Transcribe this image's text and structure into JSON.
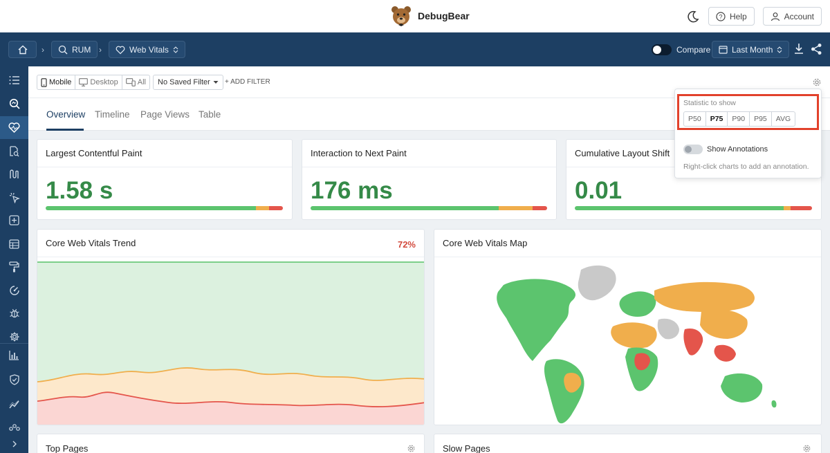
{
  "app": {
    "name": "DebugBear"
  },
  "topbar": {
    "help_label": "Help",
    "account_label": "Account"
  },
  "nav": {
    "breadcrumbs": [
      {
        "label": "RUM"
      },
      {
        "label": "Web Vitals"
      }
    ],
    "compare_label": "Compare",
    "date_range": "Last Month"
  },
  "filters": {
    "devices": [
      "Mobile",
      "Desktop",
      "All"
    ],
    "selected_device": "Mobile",
    "saved_filter": "No Saved Filter",
    "add_filter": "+ ADD FILTER"
  },
  "tabs": [
    "Overview",
    "Timeline",
    "Page Views",
    "Table"
  ],
  "active_tab": "Overview",
  "metrics": [
    {
      "title": "Largest Contentful Paint",
      "value": "1.58 s",
      "dist": [
        0.886,
        0.056,
        0.058
      ]
    },
    {
      "title": "Interaction to Next Paint",
      "value": "176 ms",
      "dist": [
        0.794,
        0.146,
        0.06
      ]
    },
    {
      "title": "Cumulative Layout Shift",
      "value": "0.01",
      "dist": [
        0.88,
        0.03,
        0.09
      ]
    }
  ],
  "trend": {
    "title": "Core Web Vitals Trend",
    "pct": "72%"
  },
  "map": {
    "title": "Core Web Vitals Map"
  },
  "bottom_cards": {
    "top_pages": "Top Pages",
    "slow_pages": "Slow Pages"
  },
  "popover": {
    "stat_label": "Statistic to show",
    "stats": [
      "P50",
      "P75",
      "P90",
      "P95",
      "AVG"
    ],
    "selected_stat": "P75",
    "annotations_label": "Show Annotations",
    "annotations_hint": "Right-click charts to add an annotation."
  },
  "colors": {
    "good": "#5cc46e",
    "needs_improvement": "#f0ae4c",
    "poor": "#e4554b",
    "nav_bg": "#1d3f63",
    "highlight": "#e2412b"
  }
}
